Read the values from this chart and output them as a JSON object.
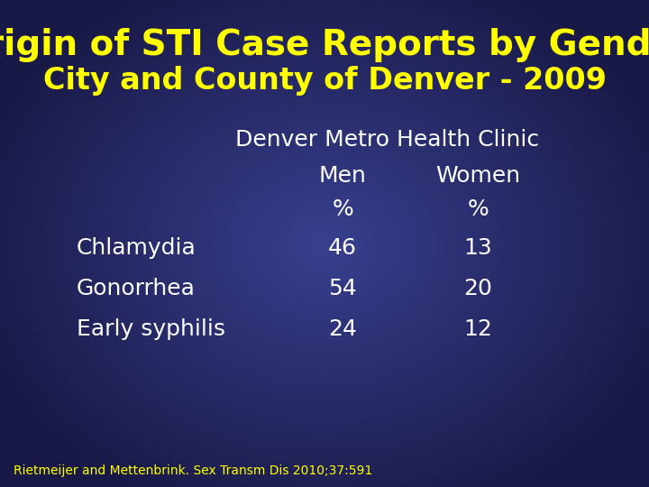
{
  "title_line1": "Origin of STI Case Reports by Gender",
  "title_line2": "City and County of Denver - 2009",
  "title_color": "#FFFF00",
  "header_clinic": "Denver Metro Health Clinic",
  "header_men": "Men",
  "header_women": "Women",
  "header_pct": "%",
  "rows": [
    {
      "label": "Chlamydia",
      "men": "46",
      "women": "13"
    },
    {
      "label": "Gonorrhea",
      "men": "54",
      "women": "20"
    },
    {
      "label": "Early syphilis",
      "men": "24",
      "women": "12"
    }
  ],
  "footnote": "Rietmeijer and Mettenbrink. Sex Transm Dis 2010;37:591",
  "footnote_color": "#FFFF00",
  "data_color": "#FFFFFF",
  "label_color": "#FFFFFF",
  "header_color": "#FFFFFF",
  "title_fontsize": 28,
  "subtitle_fontsize": 24,
  "header_fontsize": 18,
  "data_fontsize": 18,
  "footnote_fontsize": 10
}
